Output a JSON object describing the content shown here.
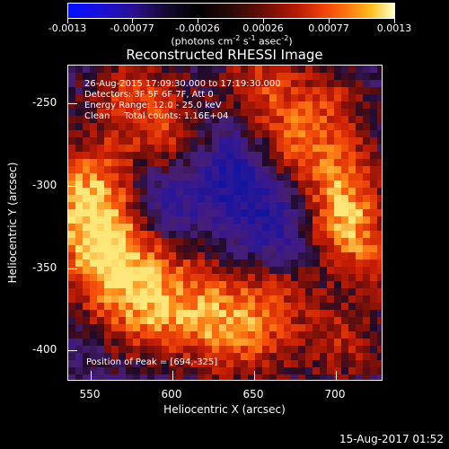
{
  "colorbar": {
    "ticks": [
      "-0.0013",
      "-0.00077",
      "-0.00026",
      "0.00026",
      "0.00077",
      "0.0013"
    ],
    "unit_prefix": "(photons cm",
    "unit_sup1": "-2",
    "unit_mid": " s",
    "unit_sup2": "-1",
    "unit_mid2": " asec",
    "unit_sup3": "-2",
    "unit_suffix": ")"
  },
  "title": "Reconstructed RHESSI Image",
  "annotations": {
    "line1": "26-Aug-2015 17:09:30.000 to 17:19:30.000",
    "line2": "Detectors: 3F 5F 6F 7F, Att 0",
    "line3": "Energy Range: 12.0 - 25.0 keV",
    "line4": "Clean     Total counts: 1.16E+04",
    "peak": "Position of Peak = [694,-325]"
  },
  "axes": {
    "xlabel": "Heliocentric X (arcsec)",
    "ylabel": "Heliocentric Y (arcsec)",
    "xticks": [
      "550",
      "600",
      "650",
      "700"
    ],
    "yticks": [
      "-250",
      "-300",
      "-350",
      "-400"
    ]
  },
  "timestamp": "15-Aug-2017 01:52"
}
